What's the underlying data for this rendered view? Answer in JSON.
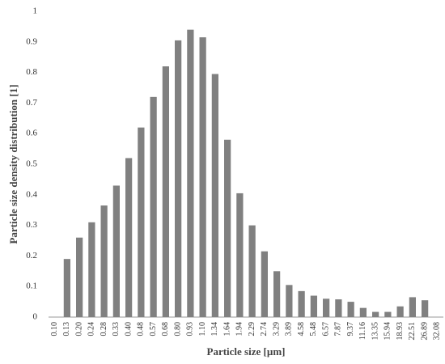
{
  "chart_data": {
    "type": "bar",
    "x_label": "Particle size [µm]",
    "y_label": "Particle size density distribution [1]",
    "categories": [
      "0.10",
      "0.13",
      "0.20",
      "0.24",
      "0.28",
      "0.33",
      "0.40",
      "0.48",
      "0.57",
      "0.68",
      "0.80",
      "0.93",
      "1.10",
      "1.34",
      "1.64",
      "1.94",
      "2.29",
      "2.74",
      "3.29",
      "3.89",
      "4.58",
      "5.48",
      "6.57",
      "7.87",
      "9.37",
      "11.16",
      "13.35",
      "15.94",
      "18.93",
      "22.51",
      "26.89",
      "32.08"
    ],
    "values": [
      null,
      0.19,
      0.26,
      0.31,
      0.365,
      0.43,
      0.52,
      0.62,
      0.72,
      0.82,
      0.905,
      0.94,
      0.915,
      0.795,
      0.58,
      0.405,
      0.3,
      0.215,
      0.15,
      0.105,
      0.085,
      0.07,
      0.06,
      0.058,
      0.05,
      0.03,
      0.017,
      0.017,
      0.035,
      0.065,
      0.055,
      null
    ],
    "color": "#808080",
    "ylim": [
      0,
      1
    ],
    "yticks": [
      0,
      0.1,
      0.2,
      0.3,
      0.4,
      0.5,
      0.6,
      0.7,
      0.8,
      0.9,
      1
    ],
    "grid": false
  }
}
